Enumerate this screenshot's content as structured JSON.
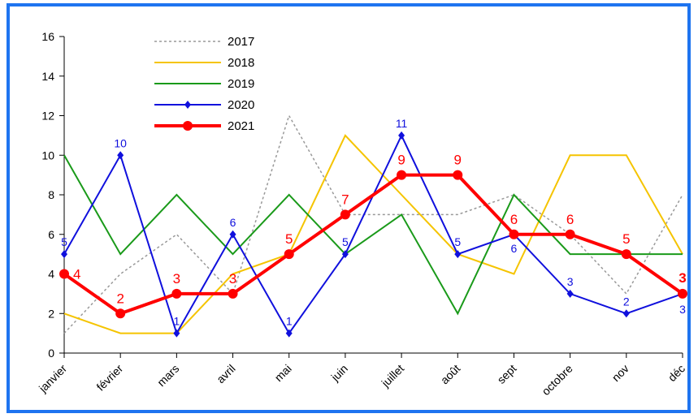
{
  "chart_data": {
    "type": "line",
    "categories": [
      "janvier",
      "février",
      "mars",
      "avril",
      "mai",
      "juin",
      "juillet",
      "août",
      "sept",
      "octobre",
      "nov",
      "déc"
    ],
    "ylim": [
      0,
      16
    ],
    "yticks": [
      0,
      2,
      4,
      6,
      8,
      10,
      12,
      14,
      16
    ],
    "grid": false,
    "legend_position": "top-left",
    "frame_color": "#1e74f0",
    "series": [
      {
        "name": "2017",
        "color": "#999999",
        "style": "dotted",
        "marker": "none",
        "data_labels": false,
        "values": [
          1,
          4,
          6,
          3,
          12,
          7,
          7,
          7,
          8,
          6,
          3,
          8
        ]
      },
      {
        "name": "2018",
        "color": "#f5c400",
        "style": "solid",
        "marker": "none",
        "data_labels": false,
        "values": [
          2,
          1,
          1,
          4,
          5,
          11,
          8,
          5,
          4,
          10,
          10,
          5
        ]
      },
      {
        "name": "2019",
        "color": "#1a9a1a",
        "style": "solid",
        "marker": "none",
        "data_labels": false,
        "values": [
          10,
          5,
          8,
          5,
          8,
          5,
          7,
          2,
          8,
          5,
          5,
          5
        ]
      },
      {
        "name": "2020",
        "color": "#1010dd",
        "style": "solid",
        "marker": "diamond",
        "data_labels": true,
        "values": [
          5,
          10,
          1,
          6,
          1,
          5,
          11,
          5,
          6,
          3,
          2,
          3
        ]
      },
      {
        "name": "2021",
        "color": "#ff0000",
        "style": "thick",
        "marker": "circle",
        "data_labels": true,
        "values": [
          4,
          2,
          3,
          3,
          5,
          7,
          9,
          9,
          6,
          6,
          5,
          3
        ]
      }
    ]
  }
}
